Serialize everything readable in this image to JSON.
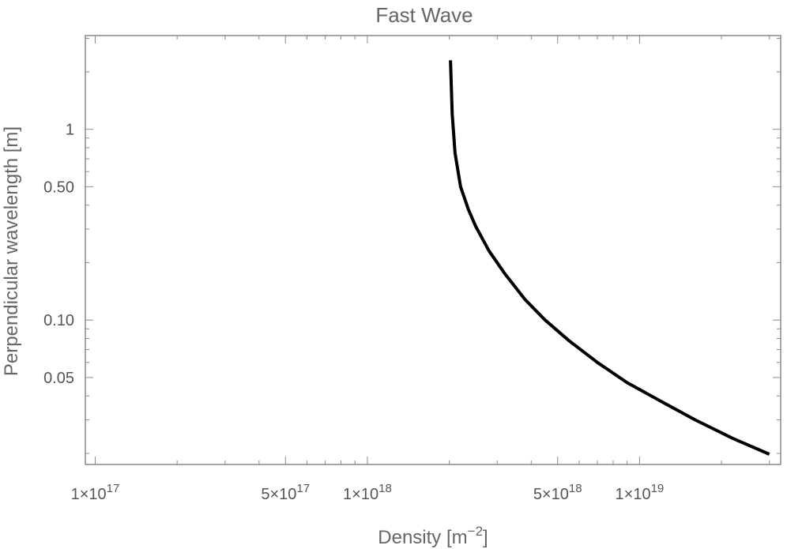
{
  "chart_data": {
    "type": "line",
    "title": "Fast Wave",
    "xlabel": {
      "text": "Density [m",
      "sup": "−2",
      "close": "]"
    },
    "ylabel": "Perpendicular wavelength [m]",
    "xscale": "log",
    "yscale": "log",
    "xlim": [
      9.2e+16,
      3.3e+19
    ],
    "ylim": [
      0.0175,
      3.1
    ],
    "grid": false,
    "x_ticks": [
      {
        "value": 1e+17,
        "mantissa": "1",
        "exp": "17"
      },
      {
        "value": 5e+17,
        "mantissa": "5",
        "exp": "17"
      },
      {
        "value": 1e+18,
        "mantissa": "1",
        "exp": "18"
      },
      {
        "value": 5e+18,
        "mantissa": "5",
        "exp": "18"
      },
      {
        "value": 1e+19,
        "mantissa": "1",
        "exp": "19"
      }
    ],
    "y_ticks": [
      {
        "value": 1,
        "label": "1"
      },
      {
        "value": 0.5,
        "label": "0.50"
      },
      {
        "value": 0.1,
        "label": "0.10"
      },
      {
        "value": 0.05,
        "label": "0.05"
      }
    ],
    "series": [
      {
        "color": "#000000",
        "x": [
          2.02e+18,
          2.05e+18,
          2.1e+18,
          2.2e+18,
          2.35e+18,
          2.5e+18,
          2.8e+18,
          3.2e+18,
          3.8e+18,
          4.5e+18,
          5.5e+18,
          7e+18,
          9e+18,
          1.2e+19,
          1.6e+19,
          2.2e+19,
          3e+19
        ],
        "y": [
          2.3,
          1.2,
          0.75,
          0.5,
          0.38,
          0.31,
          0.23,
          0.175,
          0.128,
          0.1,
          0.078,
          0.06,
          0.047,
          0.0375,
          0.03,
          0.024,
          0.0198
        ]
      }
    ]
  }
}
